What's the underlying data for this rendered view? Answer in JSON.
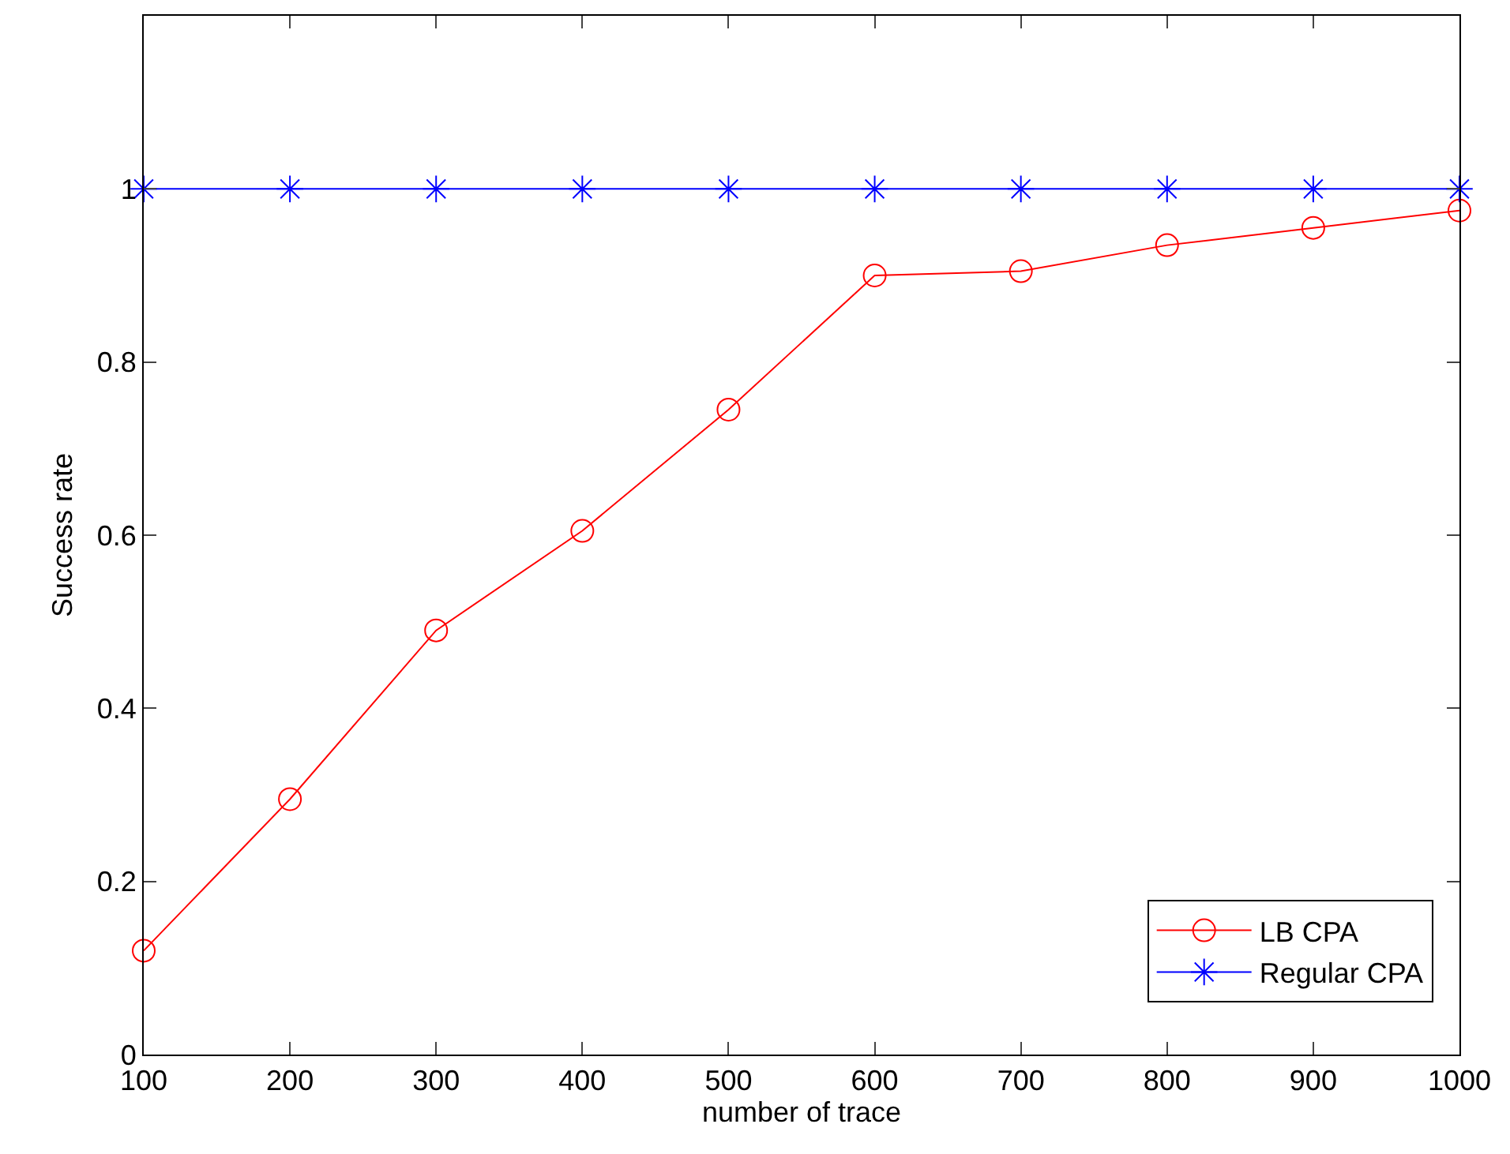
{
  "chart_data": {
    "type": "line",
    "xlabel": "number of trace",
    "ylabel": "Success rate",
    "x": [
      100,
      200,
      300,
      400,
      500,
      600,
      700,
      800,
      900,
      1000
    ],
    "series": [
      {
        "name": "LB CPA",
        "color": "#ff0000",
        "marker": "circle",
        "values": [
          0.12,
          0.295,
          0.49,
          0.605,
          0.745,
          0.9,
          0.905,
          0.935,
          0.955,
          0.975
        ]
      },
      {
        "name": "Regular CPA",
        "color": "#0000ff",
        "marker": "cross",
        "values": [
          1,
          1,
          1,
          1,
          1,
          1,
          1,
          1,
          1,
          1
        ]
      }
    ],
    "xlim": [
      100,
      1000
    ],
    "xticks": [
      100,
      200,
      300,
      400,
      500,
      600,
      700,
      800,
      900,
      1000
    ],
    "ylim": [
      0,
      1.2
    ],
    "yticks": [
      0,
      0.2,
      0.4,
      0.6,
      0.8,
      1
    ],
    "grid": false,
    "legend": "bottom right",
    "line_style": "solid"
  }
}
